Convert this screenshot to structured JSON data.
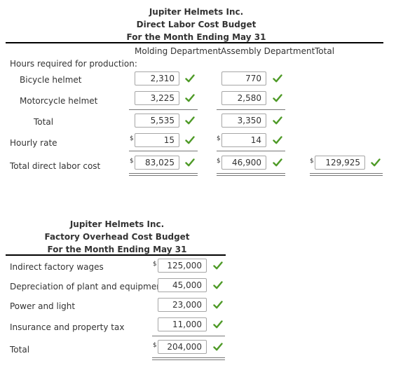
{
  "labor": {
    "title1": "Jupiter Helmets Inc.",
    "title2": "Direct Labor Cost Budget",
    "title3": "For the Month Ending May 31",
    "col_molding": "Molding Department",
    "col_assembly": "Assembly Department",
    "col_total": "Total",
    "hours_label": "Hours required for production:",
    "bicycle_label": "Bicycle helmet",
    "motorcycle_label": "Motorcycle helmet",
    "total_label": "Total",
    "rate_label": "Hourly rate",
    "cost_label": "Total direct labor cost",
    "molding": {
      "bicycle": "2,310",
      "motorcycle": "3,225",
      "total": "5,535",
      "rate": "15",
      "cost": "83,025"
    },
    "assembly": {
      "bicycle": "770",
      "motorcycle": "2,580",
      "total": "3,350",
      "rate": "14",
      "cost": "46,900"
    },
    "total_cost": "129,925",
    "dollar_sign": "$"
  },
  "overhead": {
    "title1": "Jupiter Helmets Inc.",
    "title2": "Factory Overhead Cost Budget",
    "title3": "For the Month Ending May 31",
    "rows": [
      {
        "label": "Indirect factory wages",
        "value": "125,000"
      },
      {
        "label": "Depreciation of plant and equipment",
        "value": "45,000"
      },
      {
        "label": "Power and light",
        "value": "23,000"
      },
      {
        "label": "Insurance and property tax",
        "value": "11,000"
      },
      {
        "label": "Total",
        "value": "204,000"
      }
    ],
    "dollar_sign": "$"
  },
  "colors": {
    "check": "#4e9a27",
    "box_border": "#a6a6a6"
  },
  "icons": {
    "correct": "check-icon"
  }
}
